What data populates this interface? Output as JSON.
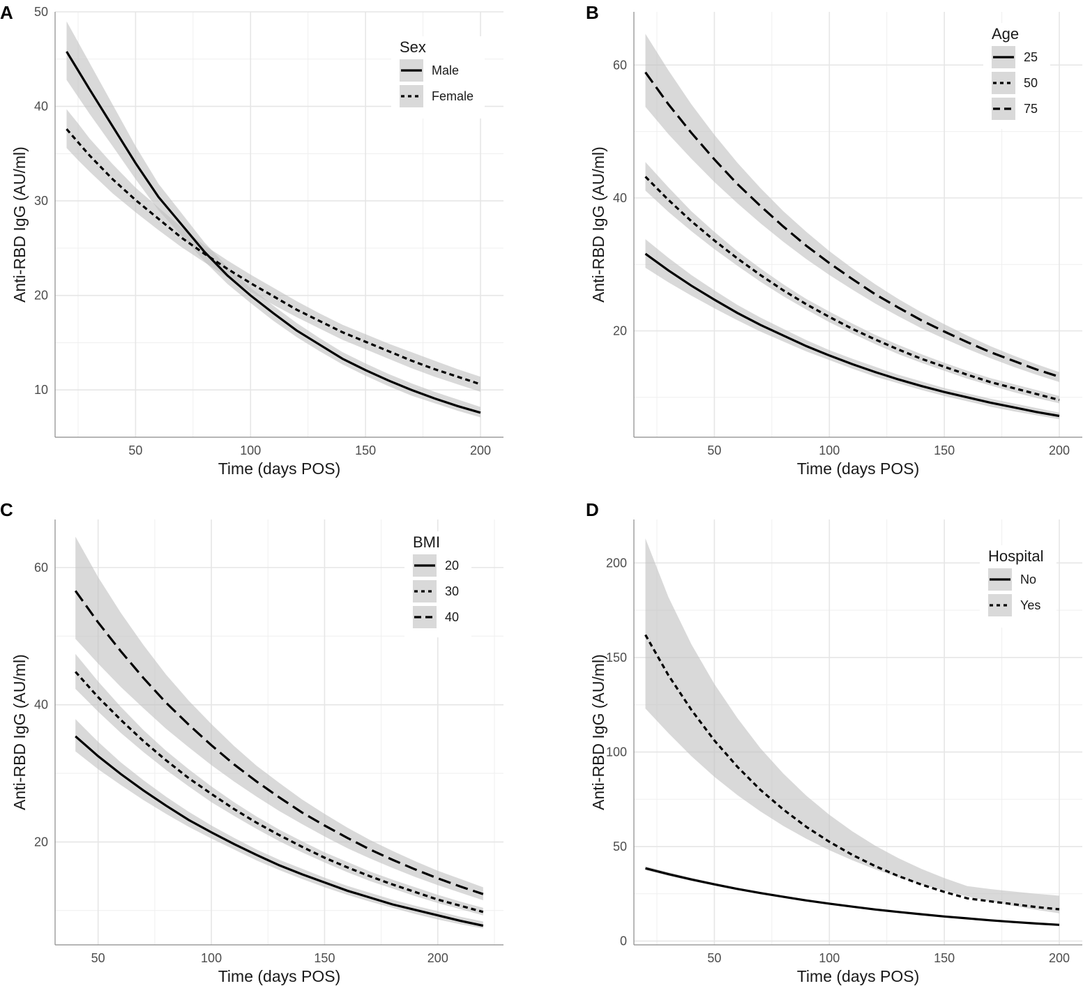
{
  "chart_data": [
    {
      "panel": "A",
      "type": "line",
      "xlabel": "Time (days POS)",
      "ylabel": "Anti-RBD IgG (AU/ml)",
      "xlim": [
        15,
        210
      ],
      "ylim": [
        5,
        50
      ],
      "x_ticks": [
        50,
        100,
        150,
        200
      ],
      "y_ticks": [
        10,
        20,
        30,
        40,
        50
      ],
      "legend": {
        "title": "Sex",
        "position": "top-right"
      },
      "series": [
        {
          "name": "Male",
          "dash": "solid",
          "x": [
            20,
            25,
            30,
            40,
            50,
            60,
            70,
            80,
            90,
            100,
            110,
            120,
            130,
            140,
            150,
            160,
            170,
            180,
            190,
            200
          ],
          "values": [
            45.8,
            43.8,
            41.8,
            37.9,
            34.0,
            30.4,
            27.5,
            24.6,
            22.1,
            20.0,
            18.1,
            16.3,
            14.8,
            13.3,
            12.1,
            11.0,
            10.0,
            9.1,
            8.3,
            7.6
          ],
          "lower": [
            42.8,
            41.0,
            39.2,
            35.8,
            32.3,
            29.0,
            26.3,
            23.6,
            21.2,
            19.2,
            17.3,
            15.6,
            14.1,
            12.7,
            11.5,
            10.4,
            9.4,
            8.6,
            7.8,
            7.1
          ],
          "upper": [
            49.0,
            46.8,
            44.6,
            40.2,
            35.8,
            31.8,
            28.7,
            25.6,
            23.0,
            20.8,
            18.9,
            17.1,
            15.5,
            14.0,
            12.8,
            11.7,
            10.7,
            9.8,
            9.0,
            8.2
          ]
        },
        {
          "name": "Female",
          "dash": "dotted",
          "x": [
            20,
            25,
            30,
            40,
            50,
            60,
            70,
            80,
            90,
            100,
            110,
            120,
            130,
            140,
            150,
            160,
            170,
            180,
            190,
            200
          ],
          "values": [
            37.6,
            36.2,
            34.8,
            32.3,
            30.1,
            28.1,
            26.1,
            24.4,
            22.8,
            21.3,
            19.9,
            18.5,
            17.3,
            16.1,
            15.1,
            14.1,
            13.1,
            12.2,
            11.4,
            10.6
          ],
          "lower": [
            35.6,
            34.3,
            33.1,
            30.8,
            28.8,
            26.9,
            25.1,
            23.5,
            21.9,
            20.4,
            19.0,
            17.7,
            16.5,
            15.3,
            14.3,
            13.3,
            12.3,
            11.4,
            10.6,
            9.8
          ],
          "upper": [
            39.7,
            38.2,
            36.6,
            33.9,
            31.4,
            29.3,
            27.2,
            25.3,
            23.7,
            22.2,
            20.8,
            19.4,
            18.1,
            16.9,
            15.9,
            14.9,
            14.0,
            13.1,
            12.2,
            11.4
          ]
        }
      ]
    },
    {
      "panel": "B",
      "type": "line",
      "xlabel": "Time (days POS)",
      "ylabel": "Anti-RBD IgG (AU/ml)",
      "xlim": [
        15,
        210
      ],
      "ylim": [
        4,
        68
      ],
      "x_ticks": [
        50,
        100,
        150,
        200
      ],
      "y_ticks": [
        20,
        40,
        60
      ],
      "legend": {
        "title": "Age",
        "position": "top-right"
      },
      "series": [
        {
          "name": "25",
          "dash": "solid",
          "x": [
            20,
            30,
            40,
            50,
            60,
            70,
            80,
            90,
            100,
            110,
            120,
            130,
            140,
            150,
            160,
            170,
            180,
            190,
            200
          ],
          "values": [
            31.6,
            29.1,
            26.8,
            24.7,
            22.7,
            20.9,
            19.3,
            17.7,
            16.3,
            15.0,
            13.8,
            12.7,
            11.7,
            10.8,
            10.0,
            9.2,
            8.5,
            7.8,
            7.2
          ],
          "lower": [
            29.5,
            27.3,
            25.3,
            23.4,
            21.6,
            19.9,
            18.4,
            16.9,
            15.6,
            14.3,
            13.1,
            12.1,
            11.1,
            10.2,
            9.4,
            8.6,
            7.9,
            7.3,
            6.7
          ],
          "upper": [
            33.8,
            31.0,
            28.4,
            26.1,
            23.9,
            22.0,
            20.3,
            18.6,
            17.1,
            15.8,
            14.6,
            13.4,
            12.4,
            11.4,
            10.6,
            9.8,
            9.1,
            8.4,
            7.7
          ]
        },
        {
          "name": "50",
          "dash": "dotted",
          "x": [
            20,
            30,
            40,
            50,
            60,
            70,
            80,
            90,
            100,
            110,
            120,
            130,
            140,
            150,
            160,
            170,
            180,
            190,
            200
          ],
          "values": [
            43.2,
            39.7,
            36.5,
            33.6,
            30.9,
            28.4,
            26.1,
            24.0,
            22.1,
            20.3,
            18.7,
            17.2,
            15.8,
            14.6,
            13.4,
            12.3,
            11.4,
            10.5,
            9.6
          ],
          "lower": [
            41.1,
            37.9,
            35.0,
            32.3,
            29.8,
            27.4,
            25.2,
            23.2,
            21.3,
            19.6,
            18.0,
            16.5,
            15.2,
            14.0,
            12.8,
            11.8,
            10.8,
            9.9,
            9.1
          ],
          "upper": [
            45.4,
            41.6,
            38.0,
            34.9,
            32.0,
            29.4,
            27.0,
            24.8,
            22.9,
            21.1,
            19.4,
            17.9,
            16.5,
            15.2,
            14.0,
            12.9,
            12.0,
            11.1,
            10.2
          ]
        },
        {
          "name": "75",
          "dash": "dashed",
          "x": [
            20,
            30,
            40,
            50,
            60,
            70,
            80,
            90,
            100,
            110,
            120,
            130,
            140,
            150,
            160,
            170,
            180,
            190,
            200
          ],
          "values": [
            58.9,
            54.1,
            49.8,
            45.8,
            42.1,
            38.8,
            35.7,
            32.8,
            30.2,
            27.8,
            25.5,
            23.5,
            21.6,
            19.9,
            18.3,
            16.8,
            15.5,
            14.2,
            13.1
          ],
          "lower": [
            53.7,
            49.6,
            45.9,
            42.4,
            39.2,
            36.2,
            33.4,
            30.8,
            28.4,
            26.2,
            24.1,
            22.2,
            20.4,
            18.8,
            17.3,
            15.9,
            14.6,
            13.4,
            12.3
          ],
          "upper": [
            64.7,
            59.2,
            54.1,
            49.5,
            45.3,
            41.5,
            38.0,
            34.9,
            32.0,
            29.4,
            27.0,
            24.8,
            22.8,
            21.0,
            19.3,
            17.7,
            16.3,
            15.0,
            13.8
          ]
        }
      ]
    },
    {
      "panel": "C",
      "type": "line",
      "xlabel": "Time (days POS)",
      "ylabel": "Anti-RBD IgG (AU/ml)",
      "xlim": [
        31,
        229
      ],
      "ylim": [
        5,
        67
      ],
      "x_ticks": [
        50,
        100,
        150,
        200
      ],
      "y_ticks": [
        20,
        40,
        60
      ],
      "legend": {
        "title": "BMI",
        "position": "top-right"
      },
      "series": [
        {
          "name": "20",
          "dash": "solid",
          "x": [
            40,
            50,
            60,
            70,
            80,
            90,
            100,
            110,
            120,
            130,
            140,
            150,
            160,
            170,
            180,
            190,
            200,
            210,
            220
          ],
          "values": [
            35.4,
            32.5,
            29.9,
            27.5,
            25.3,
            23.2,
            21.4,
            19.7,
            18.1,
            16.6,
            15.3,
            14.1,
            12.9,
            11.9,
            10.9,
            10.1,
            9.3,
            8.5,
            7.8
          ],
          "lower": [
            33.2,
            30.6,
            28.3,
            26.1,
            24.1,
            22.2,
            20.5,
            18.9,
            17.3,
            15.9,
            14.6,
            13.4,
            12.3,
            11.3,
            10.4,
            9.5,
            8.7,
            8.0,
            7.4
          ],
          "upper": [
            37.9,
            34.6,
            31.6,
            29.0,
            26.6,
            24.4,
            22.4,
            20.6,
            18.9,
            17.4,
            16.1,
            14.8,
            13.6,
            12.6,
            11.6,
            10.7,
            9.9,
            9.1,
            8.4
          ]
        },
        {
          "name": "30",
          "dash": "dotted",
          "x": [
            40,
            50,
            60,
            70,
            80,
            90,
            100,
            110,
            120,
            130,
            140,
            150,
            160,
            170,
            180,
            190,
            200,
            210,
            220
          ],
          "values": [
            44.8,
            41.1,
            37.8,
            34.7,
            31.9,
            29.3,
            27.0,
            24.8,
            22.8,
            21.0,
            19.3,
            17.7,
            16.3,
            15.0,
            13.8,
            12.7,
            11.6,
            10.7,
            9.8
          ],
          "lower": [
            42.3,
            39.0,
            35.9,
            33.1,
            30.5,
            28.1,
            25.8,
            23.8,
            21.9,
            20.1,
            18.5,
            17.0,
            15.6,
            14.3,
            13.2,
            12.1,
            11.1,
            10.2,
            9.3
          ],
          "upper": [
            47.4,
            43.4,
            39.7,
            36.3,
            33.3,
            30.6,
            28.1,
            25.8,
            23.7,
            21.8,
            20.1,
            18.5,
            17.1,
            15.7,
            14.5,
            13.4,
            12.3,
            11.3,
            10.4
          ]
        },
        {
          "name": "40",
          "dash": "dashed",
          "x": [
            40,
            50,
            60,
            70,
            80,
            90,
            100,
            110,
            120,
            130,
            140,
            150,
            160,
            170,
            180,
            190,
            200,
            210,
            220
          ],
          "values": [
            56.6,
            52.0,
            47.8,
            43.9,
            40.3,
            37.1,
            34.1,
            31.3,
            28.8,
            26.5,
            24.3,
            22.4,
            20.6,
            18.9,
            17.4,
            16.0,
            14.7,
            13.5,
            12.4
          ],
          "lower": [
            49.6,
            46.0,
            42.6,
            39.5,
            36.5,
            33.8,
            31.2,
            28.8,
            26.6,
            24.5,
            22.6,
            20.8,
            19.1,
            17.6,
            16.2,
            14.9,
            13.7,
            12.6,
            11.5
          ],
          "upper": [
            64.5,
            58.6,
            53.4,
            48.7,
            44.4,
            40.6,
            37.2,
            34.0,
            31.1,
            28.6,
            26.2,
            24.1,
            22.1,
            20.3,
            18.7,
            17.2,
            15.8,
            14.6,
            13.4
          ]
        }
      ]
    },
    {
      "panel": "D",
      "type": "line",
      "xlabel": "Time (days POS)",
      "ylabel": "Anti-RBD IgG (AU/ml)",
      "xlim": [
        15,
        210
      ],
      "ylim": [
        -2,
        223
      ],
      "x_ticks": [
        50,
        100,
        150,
        200
      ],
      "y_ticks": [
        0,
        50,
        100,
        150,
        200
      ],
      "legend": {
        "title": "Hospital",
        "position": "top-right"
      },
      "series": [
        {
          "name": "No",
          "dash": "solid",
          "x": [
            20,
            30,
            40,
            50,
            60,
            70,
            80,
            90,
            100,
            110,
            120,
            130,
            140,
            150,
            160,
            170,
            180,
            190,
            200
          ],
          "values": [
            38.5,
            35.4,
            32.6,
            30.0,
            27.6,
            25.4,
            23.4,
            21.5,
            19.8,
            18.2,
            16.7,
            15.4,
            14.2,
            13.0,
            12.0,
            11.0,
            10.1,
            9.3,
            8.6
          ],
          "lower": [
            37.5,
            34.5,
            31.8,
            29.3,
            27.0,
            24.8,
            22.9,
            21.0,
            19.3,
            17.7,
            16.3,
            15.0,
            13.8,
            12.6,
            11.6,
            10.7,
            9.8,
            9.0,
            8.3
          ],
          "upper": [
            39.6,
            36.4,
            33.4,
            30.7,
            28.2,
            26.0,
            23.9,
            22.0,
            20.3,
            18.7,
            17.2,
            15.8,
            14.6,
            13.4,
            12.4,
            11.4,
            10.5,
            9.7,
            8.9
          ]
        },
        {
          "name": "Yes",
          "dash": "dotted",
          "x": [
            20,
            30,
            40,
            50,
            60,
            70,
            80,
            90,
            100,
            110,
            120,
            130,
            140,
            150,
            160,
            170,
            180,
            190,
            200
          ],
          "values": [
            162.0,
            140.6,
            122.3,
            106.1,
            92.2,
            80.0,
            69.6,
            60.4,
            52.5,
            45.6,
            39.6,
            34.4,
            29.9,
            26.0,
            22.6,
            21.0,
            19.5,
            18.0,
            16.8
          ],
          "lower": [
            123.0,
            110.0,
            97.8,
            86.9,
            77.2,
            68.6,
            60.9,
            54.1,
            48.1,
            42.7,
            37.9,
            33.7,
            29.9,
            26.6,
            23.6,
            21.0,
            18.6,
            16.5,
            14.7
          ],
          "upper": [
            213.0,
            182.0,
            157.0,
            136.0,
            118.0,
            102.0,
            88.6,
            76.9,
            66.8,
            58.0,
            50.4,
            43.9,
            38.2,
            33.3,
            29.1,
            27.5,
            26.2,
            25.0,
            24.0
          ]
        }
      ]
    }
  ]
}
